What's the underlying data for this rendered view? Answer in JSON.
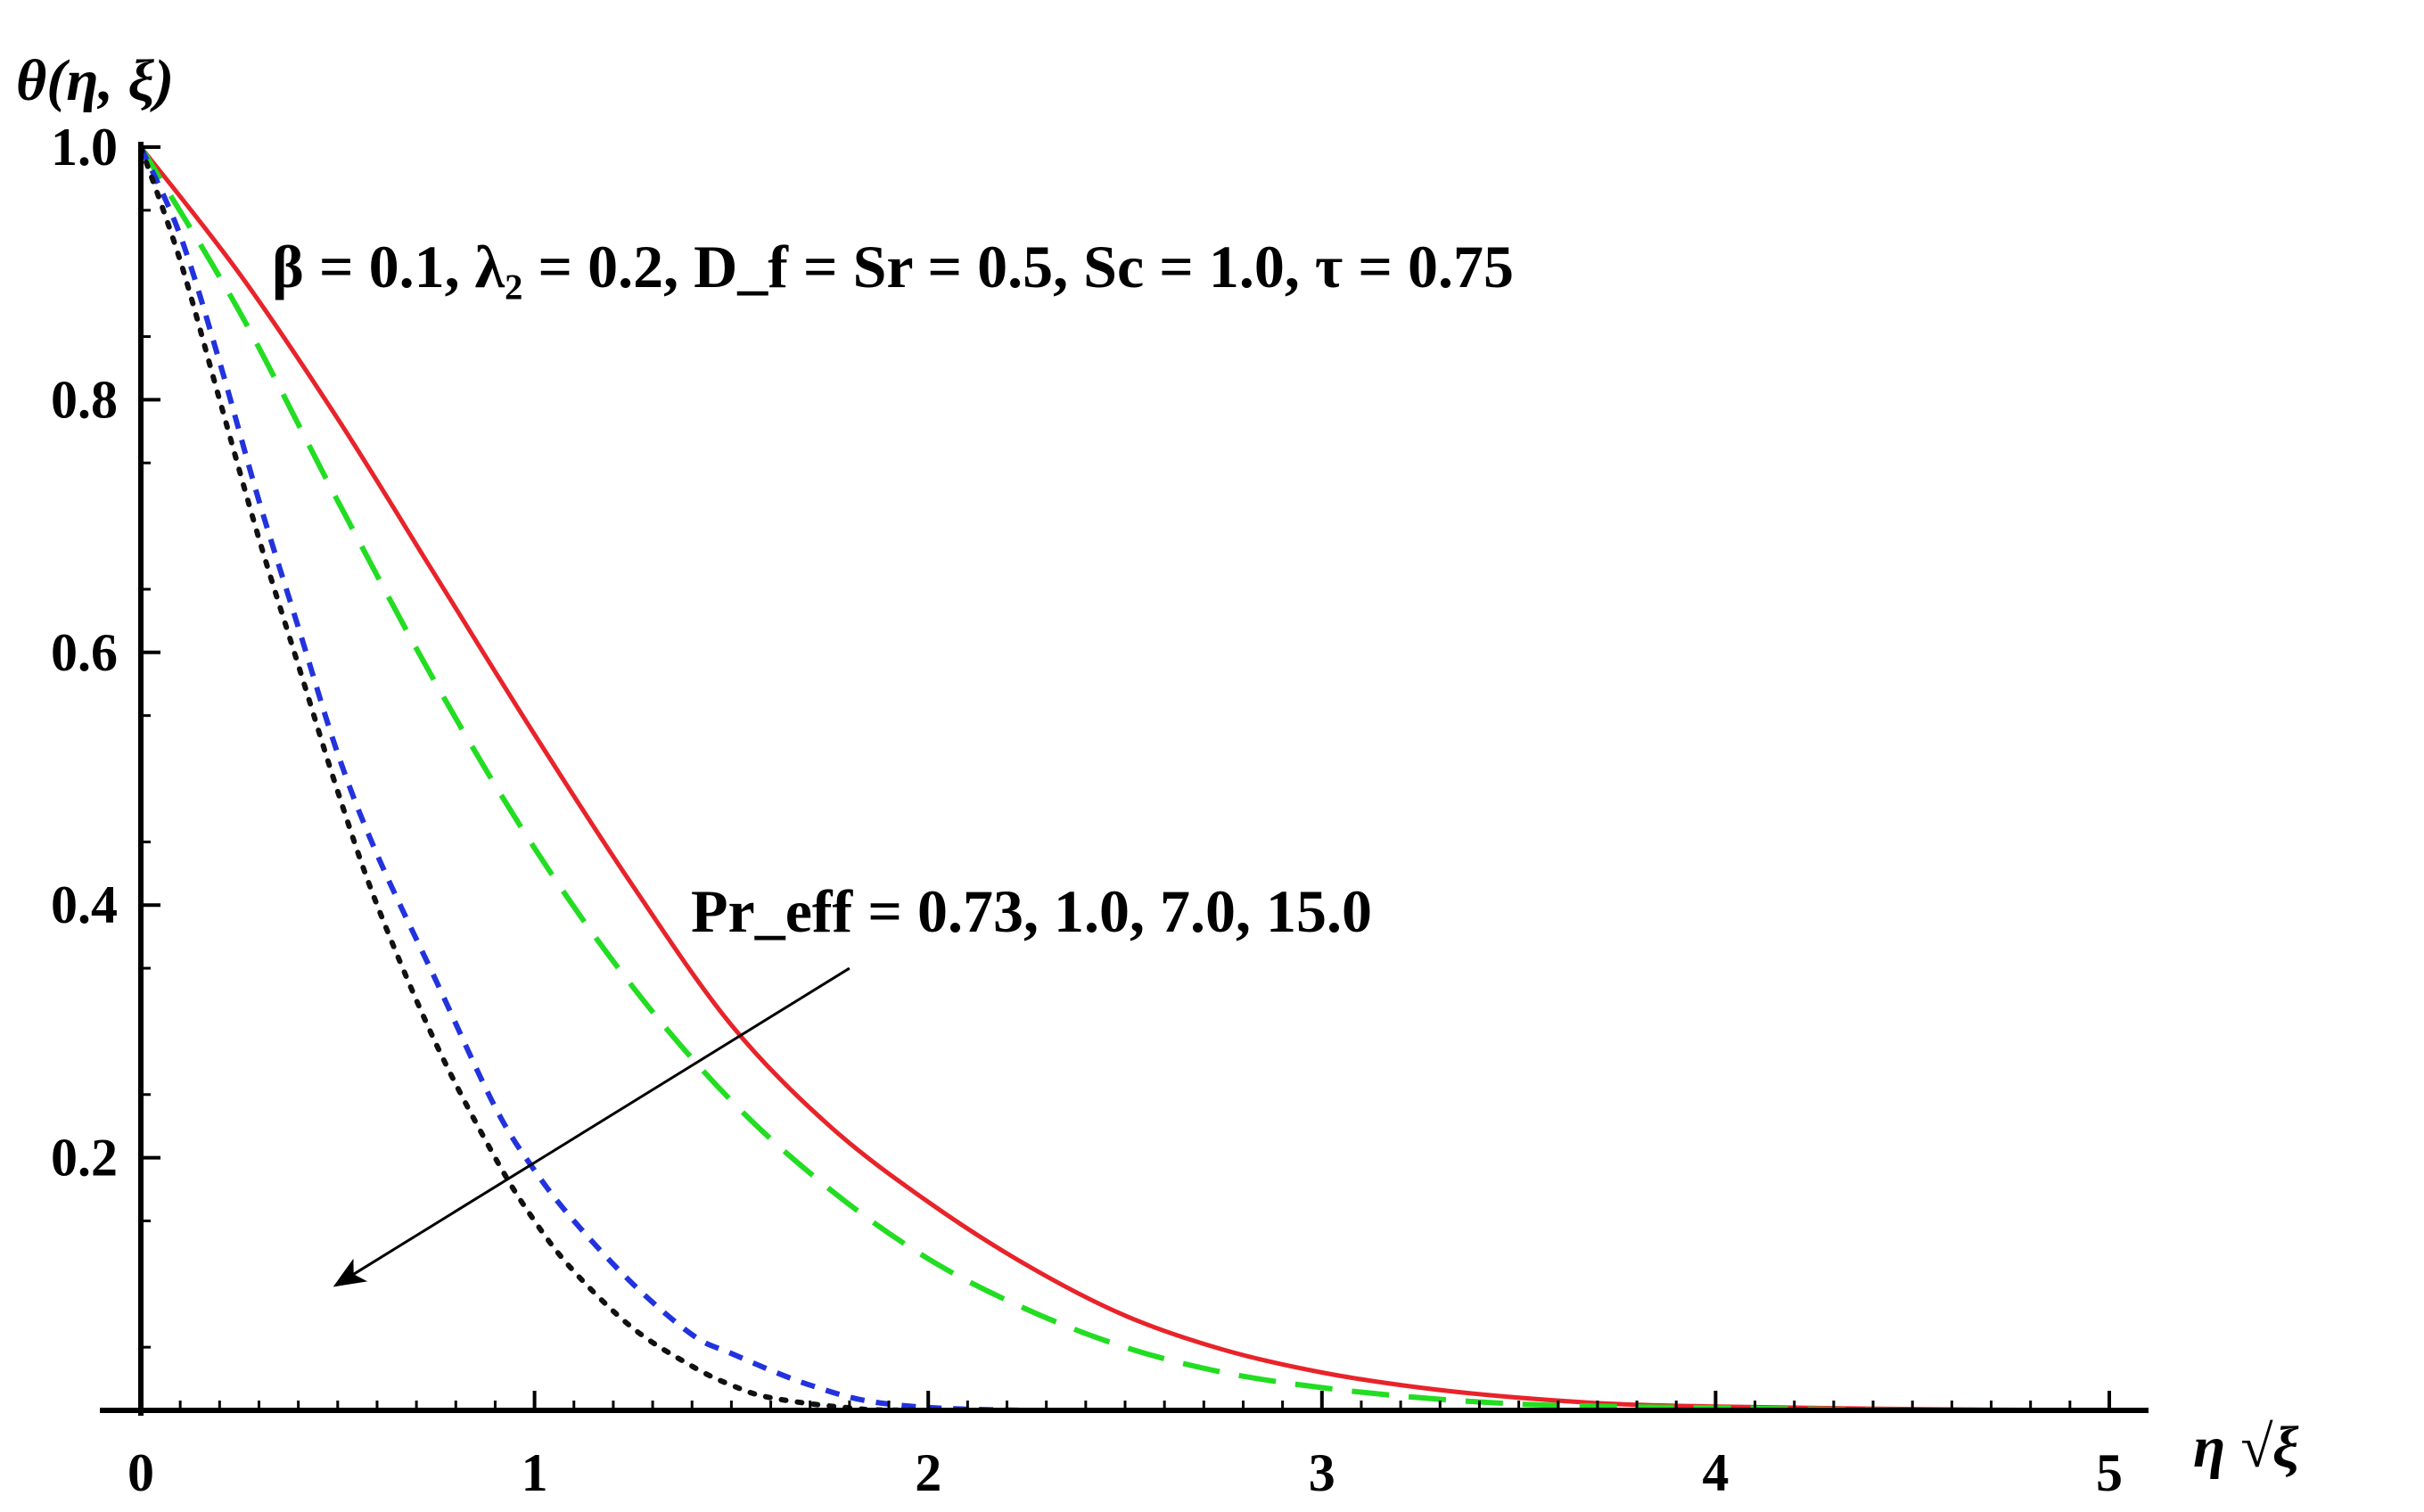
{
  "chart_data": {
    "type": "line",
    "title": "",
    "xlabel": "η √ξ",
    "ylabel": "θ(η, ξ)",
    "xlim": [
      0,
      5
    ],
    "ylim": [
      0,
      1.0
    ],
    "x_ticks": [
      "0",
      "1",
      "2",
      "3",
      "4",
      "5"
    ],
    "y_ticks": [
      "0.2",
      "0.4",
      "0.6",
      "0.8",
      "1.0"
    ],
    "grid": false,
    "legend": "none",
    "annotations": {
      "params": "β = 0.1, λ₂ = 0.2, D_f = Sr = 0.5, Sc = 1.0, τ = 0.75",
      "pr_label": "Pr_eff = 0.73, 1.0, 7.0, 15.0",
      "arrow": {
        "from": [
          1.8,
          0.35
        ],
        "to": [
          0.5,
          0.1
        ],
        "note": "arrow indicates increasing Pr_eff"
      }
    },
    "series": [
      {
        "style": "solid",
        "color": "#e8232a",
        "x": [
          0,
          0.25,
          0.5,
          0.75,
          1.0,
          1.25,
          1.5,
          1.75,
          2.0,
          2.25,
          2.5,
          2.75,
          3.0,
          3.25,
          3.5,
          3.75,
          4.0,
          4.5,
          5.0
        ],
        "y": [
          1.0,
          0.9,
          0.785,
          0.66,
          0.535,
          0.415,
          0.305,
          0.225,
          0.165,
          0.115,
          0.075,
          0.048,
          0.03,
          0.018,
          0.01,
          0.005,
          0.003,
          0.001,
          0.0
        ]
      },
      {
        "style": "dashed",
        "color": "#22dd22",
        "x": [
          0,
          0.25,
          0.5,
          0.75,
          1.0,
          1.25,
          1.5,
          1.75,
          2.0,
          2.25,
          2.5,
          2.75,
          3.0,
          3.25,
          3.5,
          3.75,
          4.0,
          4.5,
          5.0
        ],
        "y": [
          1.0,
          0.87,
          0.72,
          0.575,
          0.445,
          0.335,
          0.245,
          0.175,
          0.12,
          0.08,
          0.05,
          0.03,
          0.018,
          0.01,
          0.005,
          0.003,
          0.002,
          0.0,
          0.0
        ]
      },
      {
        "style": "short-dashed",
        "color": "#2233dd",
        "x": [
          0,
          0.1,
          0.2,
          0.3,
          0.4,
          0.5,
          0.6,
          0.75,
          0.9,
          1.0,
          1.1,
          1.25,
          1.4,
          1.5,
          1.7,
          1.9,
          2.25,
          3.0,
          4.0,
          5.0
        ],
        "y": [
          1.0,
          0.93,
          0.83,
          0.72,
          0.62,
          0.52,
          0.44,
          0.34,
          0.24,
          0.19,
          0.15,
          0.1,
          0.06,
          0.045,
          0.02,
          0.005,
          0.0,
          0.0,
          0.0,
          0.0
        ]
      },
      {
        "style": "dotted",
        "color": "#111111",
        "x": [
          0,
          0.1,
          0.2,
          0.3,
          0.4,
          0.5,
          0.6,
          0.75,
          0.9,
          1.0,
          1.1,
          1.25,
          1.4,
          1.5,
          1.6,
          1.8,
          2.0,
          3.0,
          4.0,
          5.0
        ],
        "y": [
          1.0,
          0.91,
          0.8,
          0.69,
          0.59,
          0.49,
          0.4,
          0.29,
          0.2,
          0.15,
          0.11,
          0.065,
          0.035,
          0.02,
          0.01,
          0.002,
          0.0,
          0.0,
          0.0,
          0.0
        ]
      }
    ]
  }
}
